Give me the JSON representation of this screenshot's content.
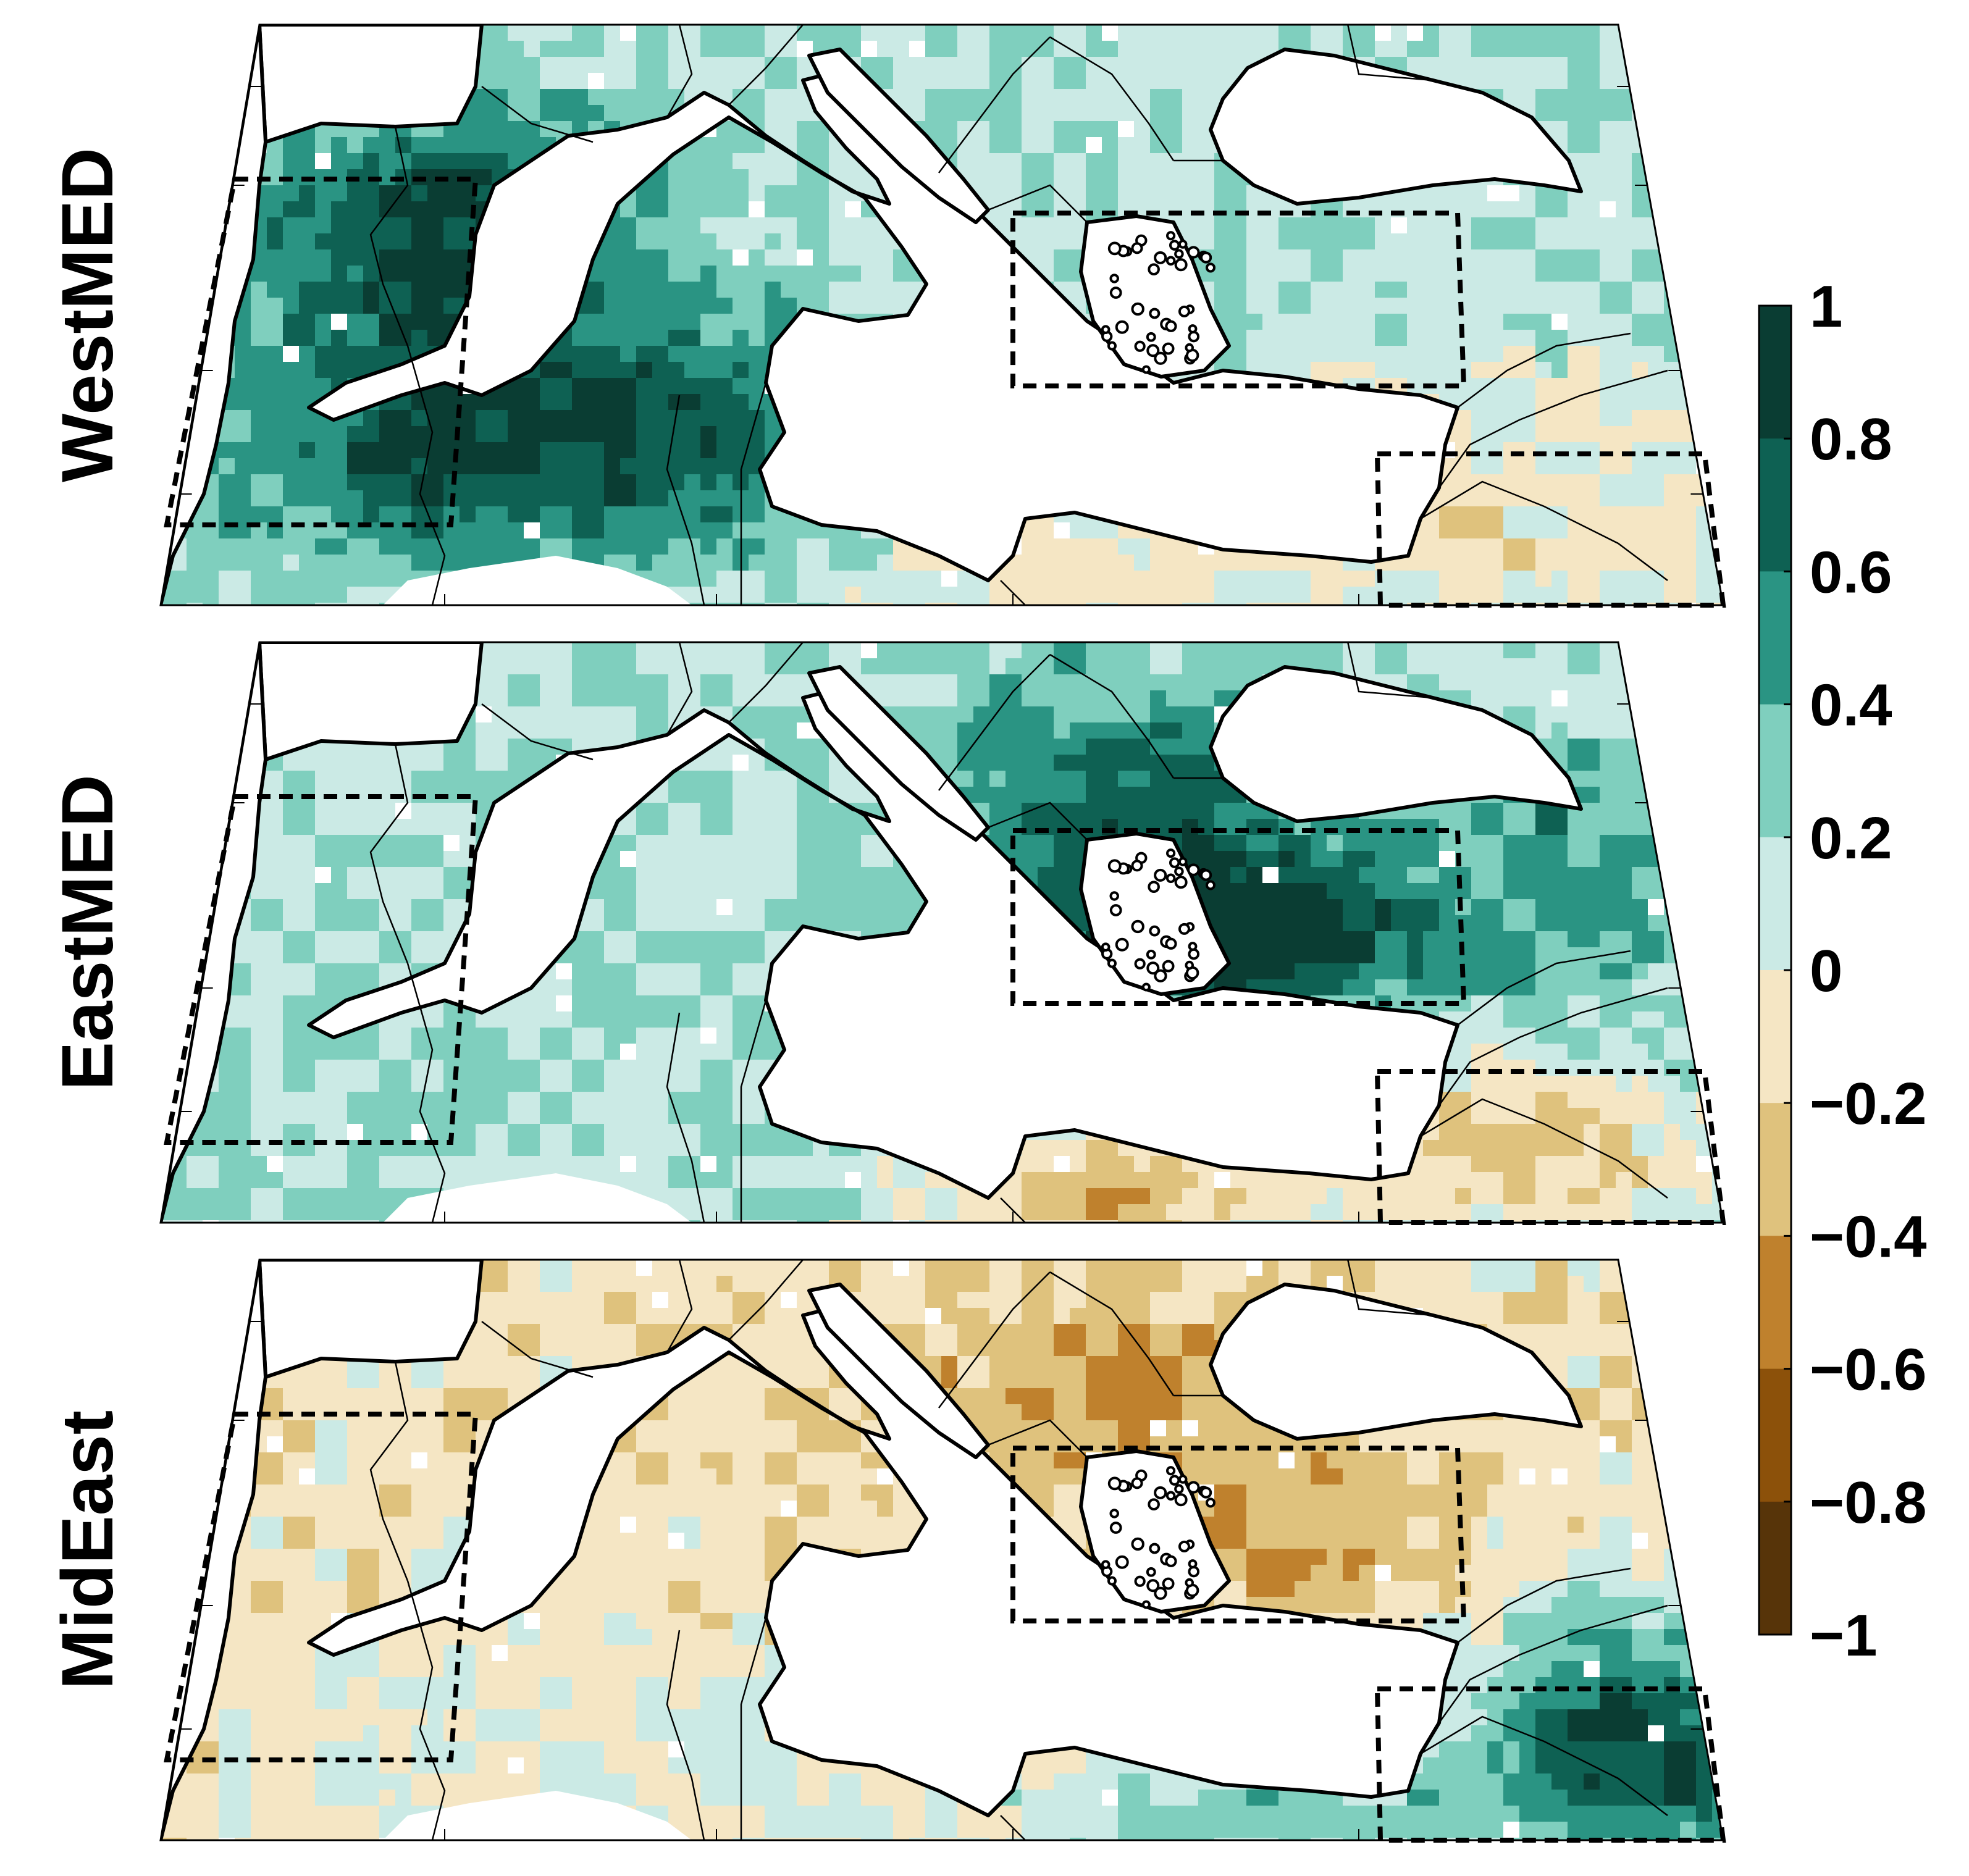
{
  "panels": [
    {
      "label": "WestMED",
      "pattern": "west"
    },
    {
      "label": "EastMED",
      "pattern": "east"
    },
    {
      "label": "MidEast",
      "pattern": "mid"
    }
  ],
  "colorbar": {
    "ticks": [
      "1",
      "0.8",
      "0.6",
      "0.4",
      "0.2",
      "0",
      "−0.2",
      "−0.4",
      "−0.6",
      "−0.8",
      "−1"
    ],
    "colors": [
      "#0a3d33",
      "#0e6153",
      "#2a9483",
      "#7fcfbe",
      "#cbeae5",
      "#f5e6c4",
      "#dfc27d",
      "#bf812d",
      "#8c510a",
      "#573409"
    ],
    "range": [
      -1,
      1
    ]
  },
  "colors": {
    "land_missing": "#ffffff",
    "sea": "#ffffff",
    "coast": "#000000",
    "box": "#000000"
  }
}
